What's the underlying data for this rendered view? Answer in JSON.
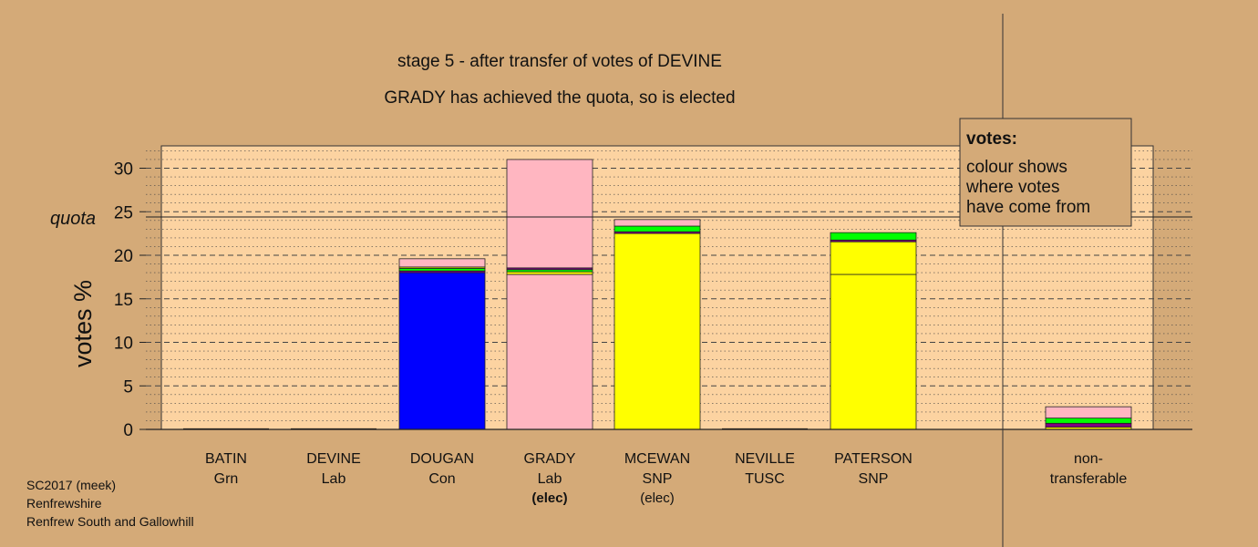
{
  "chart_data": {
    "type": "bar",
    "stacked": true,
    "title": "stage 5 - after transfer of votes of DEVINE",
    "subtitle": "GRADY has achieved the quota, so is elected",
    "ylabel": "votes %",
    "ylim": [
      0,
      32.5
    ],
    "yticks": [
      0,
      5,
      10,
      15,
      20,
      25,
      30
    ],
    "quota": 24.4,
    "quota_label": "quota",
    "grid": true,
    "categories": [
      {
        "name": "BATIN",
        "party": "Grn",
        "elected": ""
      },
      {
        "name": "DEVINE",
        "party": "Lab",
        "elected": ""
      },
      {
        "name": "DOUGAN",
        "party": "Con",
        "elected": ""
      },
      {
        "name": "GRADY",
        "party": "Lab",
        "elected": "(elec)"
      },
      {
        "name": "MCEWAN",
        "party": "SNP",
        "elected": "(elec)"
      },
      {
        "name": "NEVILLE",
        "party": "TUSC",
        "elected": ""
      },
      {
        "name": "PATERSON",
        "party": "SNP",
        "elected": ""
      },
      {
        "name": "non-",
        "party": "transferable",
        "elected": ""
      }
    ],
    "stacks": [
      [],
      [],
      [
        {
          "value": 18.0,
          "color": "#0000ff"
        },
        {
          "value": 0.2,
          "color": "#800080"
        },
        {
          "value": 0.3,
          "color": "#00ff00"
        },
        {
          "value": 0.15,
          "color": "#ffff00"
        },
        {
          "value": 0.95,
          "color": "#ffb6c1"
        }
      ],
      [
        {
          "value": 17.8,
          "color": "#ffb6c1"
        },
        {
          "value": 0.3,
          "color": "#ffff00"
        },
        {
          "value": 0.25,
          "color": "#00ff00"
        },
        {
          "value": 0.2,
          "color": "#800080"
        },
        {
          "value": 12.45,
          "color": "#ffb6c1"
        }
      ],
      [
        {
          "value": 22.5,
          "color": "#ffff00"
        },
        {
          "value": 0.2,
          "color": "#800080"
        },
        {
          "value": 0.65,
          "color": "#00ff00"
        },
        {
          "value": 0.75,
          "color": "#ffb6c1"
        }
      ],
      [],
      [
        {
          "value": 17.8,
          "color": "#ffff00"
        },
        {
          "value": 3.75,
          "color": "#ffff00"
        },
        {
          "value": 0.2,
          "color": "#800080"
        },
        {
          "value": 0.85,
          "color": "#00ff00"
        }
      ],
      [
        {
          "value": 0.25,
          "color": "#ffff00"
        },
        {
          "value": 0.45,
          "color": "#800080"
        },
        {
          "value": 0.6,
          "color": "#00ff00"
        },
        {
          "value": 1.3,
          "color": "#ffb6c1"
        }
      ]
    ],
    "legend": {
      "title": "votes:",
      "lines": [
        "colour shows",
        "where votes",
        "have come from"
      ],
      "placement": "top-right"
    }
  },
  "footer": {
    "line1": "SC2017 (meek)",
    "line2": "Renfrewshire",
    "line3": "Renfrew South and Gallowhill"
  }
}
